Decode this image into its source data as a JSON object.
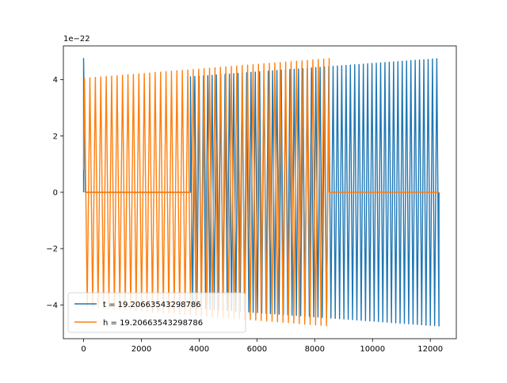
{
  "chart_data": {
    "type": "line",
    "title": "",
    "xlabel": "",
    "ylabel": "",
    "y_offset_label": "1e−22",
    "xlim": [
      -700,
      12900
    ],
    "ylim": [
      -5.2,
      5.2
    ],
    "x_ticks": [
      0,
      2000,
      4000,
      6000,
      8000,
      10000,
      12000
    ],
    "x_tick_labels": [
      "0",
      "2000",
      "4000",
      "6000",
      "8000",
      "10000",
      "12000"
    ],
    "y_ticks": [
      -4,
      -2,
      0,
      2,
      4
    ],
    "y_tick_labels": [
      "−4",
      "−2",
      "0",
      "2",
      "4"
    ],
    "grid": false,
    "legend_position": "lower-left",
    "series": [
      {
        "name": "t = 19.20663543298786",
        "color": "#1f77b4",
        "x_start": 0,
        "x_end": 12300,
        "amp_start": 4.1,
        "amp_end": 4.75,
        "initial_spike": 4.75,
        "cycles": 115,
        "gap_x": [
          0,
          3700
        ],
        "note_dense_region": [
          3700,
          8500
        ]
      },
      {
        "name": "h = 19.20663543298786",
        "color": "#ff7f0e",
        "x_start": 0,
        "x_end": 8500,
        "amp_start": 4.05,
        "amp_end": 4.75,
        "cycles": 90,
        "flat_after": [
          8500,
          12300
        ]
      }
    ]
  }
}
